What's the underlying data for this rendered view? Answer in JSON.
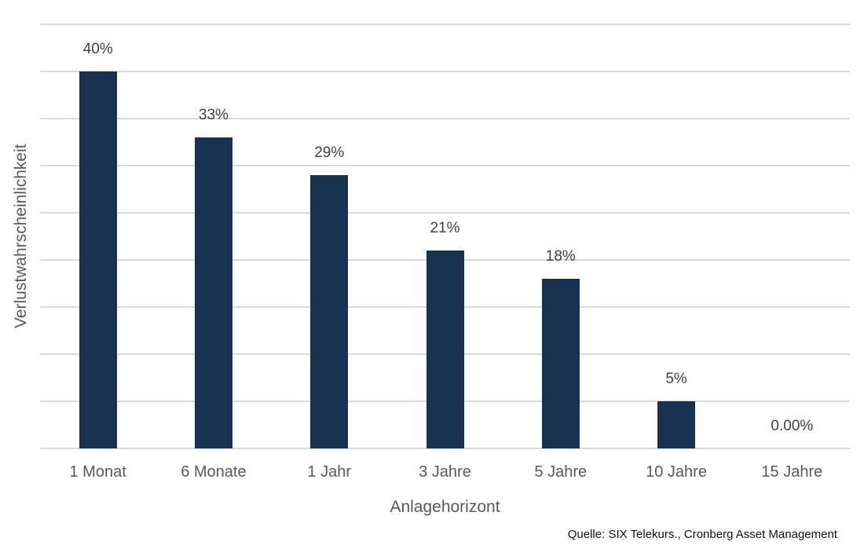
{
  "chart_data": {
    "type": "bar",
    "title": "",
    "categories": [
      "1 Monat",
      "6 Monate",
      "1 Jahr",
      "3 Jahre",
      "5 Jahre",
      "10 Jahre",
      "15 Jahre"
    ],
    "values": [
      40,
      33,
      29,
      21,
      18,
      5,
      0
    ],
    "value_labels": [
      "40%",
      "33%",
      "29%",
      "21%",
      "18%",
      "5%",
      "0.00%"
    ],
    "xlabel": "Anlagehorizont",
    "ylabel": "Verlustwahrscheinlichkeit",
    "ylim": [
      0,
      45
    ],
    "gridline_step": 5,
    "grid": "horizontal",
    "legend": "none",
    "y_tick_labels_shown": false,
    "bar_color": "#17314E",
    "gridline_color": "#D9D9D9",
    "value_label_color": "#404040",
    "axis_text_color": "#595959"
  },
  "footer": {
    "source": "Quelle: SIX Telekurs., Cronberg Asset Management"
  }
}
